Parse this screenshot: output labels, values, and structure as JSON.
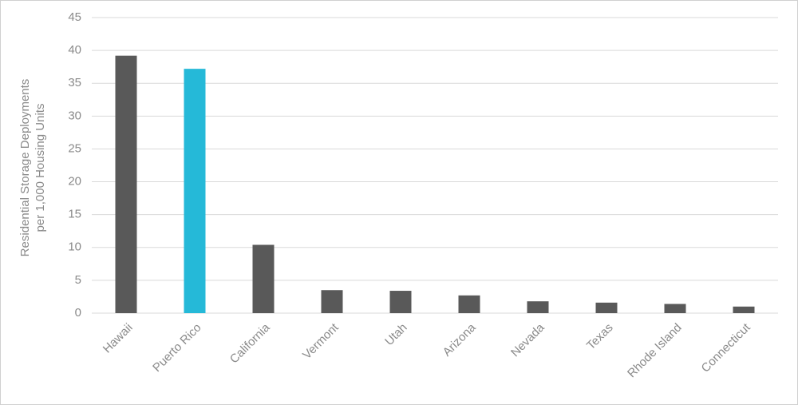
{
  "chart_data": {
    "type": "bar",
    "ylabel": [
      "Residential Storage Deployments",
      "per 1,000 Housing Units"
    ],
    "categories": [
      "Hawaii",
      "Puerto Rico",
      "California",
      "Vermont",
      "Utah",
      "Arizona",
      "Nevada",
      "Texas",
      "Rhode Island",
      "Connecticut"
    ],
    "values": [
      39.2,
      37.2,
      10.4,
      3.5,
      3.4,
      2.7,
      1.8,
      1.6,
      1.4,
      1.0
    ],
    "colors": [
      "#595959",
      "#25b9d8",
      "#595959",
      "#595959",
      "#595959",
      "#595959",
      "#595959",
      "#595959",
      "#595959",
      "#595959"
    ],
    "ylim": [
      0,
      45
    ],
    "yticks": [
      0,
      5,
      10,
      15,
      20,
      25,
      30,
      35,
      40,
      45
    ],
    "grid": true
  }
}
